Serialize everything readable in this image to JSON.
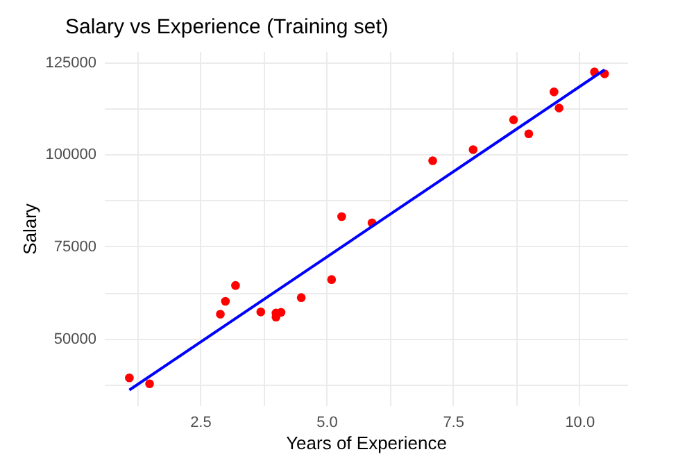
{
  "chart_data": {
    "type": "scatter",
    "title": "Salary vs Experience (Training set)",
    "xlabel": "Years of Experience",
    "ylabel": "Salary",
    "xlim": [
      0.6,
      10.95
    ],
    "ylim": [
      31800,
      128000
    ],
    "xticks": [
      {
        "value": 1.25,
        "label": null
      },
      {
        "value": 2.5,
        "label": "2.5"
      },
      {
        "value": 3.75,
        "label": null
      },
      {
        "value": 5,
        "label": "5.0"
      },
      {
        "value": 6.25,
        "label": null
      },
      {
        "value": 7.5,
        "label": "7.5"
      },
      {
        "value": 8.75,
        "label": null
      },
      {
        "value": 10,
        "label": "10.0"
      }
    ],
    "yticks": [
      {
        "value": 37500,
        "label": null
      },
      50000,
      {
        "value": 62500,
        "label": null
      },
      75000,
      {
        "value": 87500,
        "label": null
      },
      100000,
      {
        "value": 112500,
        "label": null
      },
      125000
    ],
    "grid": true,
    "series": [
      {
        "type": "scatter",
        "marker": "circle",
        "color": "#ff0000",
        "x": [
          1.1,
          1.5,
          2.9,
          3.0,
          3.2,
          3.7,
          4.0,
          4.0,
          4.1,
          4.5,
          5.1,
          5.3,
          5.9,
          7.1,
          7.9,
          8.7,
          9.0,
          9.5,
          9.6,
          10.3,
          10.5
        ],
        "values": [
          39300,
          37700,
          56600,
          60100,
          64400,
          57200,
          55800,
          56900,
          57100,
          61100,
          66000,
          83100,
          81400,
          98300,
          101300,
          109400,
          105600,
          117000,
          112600,
          122400,
          121900
        ]
      },
      {
        "type": "line",
        "marker": "none",
        "color": "#0000ff",
        "x": [
          1.1,
          10.5
        ],
        "values": [
          36000,
          123000
        ]
      }
    ]
  }
}
